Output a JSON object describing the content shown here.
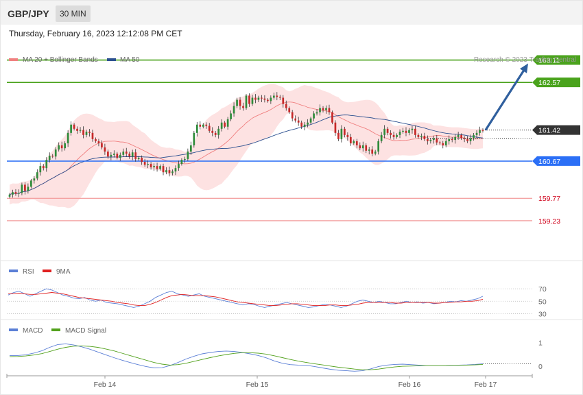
{
  "header": {
    "symbol": "GBP/JPY",
    "timeframe": "30 MIN"
  },
  "datetime": "Thursday, February 16, 2023 12:12:08 PM CET",
  "legend": {
    "ma20": "MA 20 + Bollinger Bands",
    "ma50": "MA 50",
    "copyright": "Research © 2023 Trading Central"
  },
  "colors": {
    "up": "#2e8b3a",
    "down": "#c62828",
    "resistance": "#4aa31c",
    "pivot": "#2b6ff6",
    "support": "#f29a9a",
    "support_text": "#d0021b",
    "current": "#333333",
    "arrow": "#2f5f9e",
    "bb_fill": "#fde2e2",
    "ma20": "#f08080",
    "ma50": "#2b4f8f",
    "rsi": "#5b7fd6",
    "rsi_ma": "#e02020",
    "macd": "#5b7fd6",
    "macd_signal": "#52a11c"
  },
  "chart_data": [
    {
      "type": "candlestick",
      "title": "GBP/JPY",
      "ylim": [
        158.3,
        163.5
      ],
      "ma20_label": "MA 20 + Bollinger Bands",
      "ma50_label": "MA 50",
      "ohlc_close": [
        159.86,
        159.92,
        159.88,
        159.9,
        160.1,
        159.95,
        160.05,
        160.2,
        160.25,
        160.4,
        160.55,
        160.5,
        160.7,
        160.8,
        160.78,
        160.95,
        161.05,
        160.98,
        161.1,
        161.35,
        161.55,
        161.45,
        161.4,
        161.42,
        161.3,
        161.38,
        161.35,
        161.2,
        161.15,
        161.1,
        161.0,
        160.9,
        160.78,
        160.82,
        160.85,
        160.75,
        160.82,
        160.9,
        160.85,
        160.78,
        160.88,
        160.72,
        160.75,
        160.65,
        160.58,
        160.6,
        160.52,
        160.55,
        160.48,
        160.55,
        160.4,
        160.45,
        160.38,
        160.42,
        160.5,
        160.6,
        160.7,
        160.72,
        160.9,
        161.05,
        161.35,
        161.55,
        161.5,
        161.55,
        161.52,
        161.4,
        161.35,
        161.3,
        161.45,
        161.6,
        161.5,
        161.68,
        161.82,
        162.0,
        162.15,
        162.0,
        161.95,
        162.25,
        162.05,
        162.2,
        162.15,
        162.2,
        162.18,
        162.15,
        162.12,
        162.2,
        162.25,
        162.22,
        162.2,
        162.05,
        161.95,
        161.85,
        161.7,
        161.65,
        161.6,
        161.5,
        161.55,
        161.6,
        161.7,
        161.82,
        161.85,
        161.95,
        161.9,
        161.95,
        161.85,
        161.6,
        161.35,
        161.2,
        161.45,
        161.3,
        161.25,
        161.1,
        161.15,
        161.05,
        160.98,
        161.05,
        160.92,
        160.95,
        160.85,
        160.9,
        161.15,
        161.3,
        161.45,
        161.35,
        161.3,
        161.25,
        161.3,
        161.38,
        161.4,
        161.35,
        161.42,
        161.45,
        161.3,
        161.25,
        161.28,
        161.2,
        161.15,
        161.18,
        161.22,
        161.12,
        161.1,
        161.05,
        161.15,
        161.2,
        161.18,
        161.25,
        161.3,
        161.22,
        161.2,
        161.15,
        161.22,
        161.3,
        161.35,
        161.42,
        161.4
      ],
      "levels": [
        {
          "label": "163.11",
          "value": 163.11,
          "kind": "resistance"
        },
        {
          "label": "162.57",
          "value": 162.57,
          "kind": "resistance"
        },
        {
          "label": "161.42",
          "value": 161.42,
          "kind": "current"
        },
        {
          "label": "160.67",
          "value": 160.67,
          "kind": "pivot"
        },
        {
          "label": "159.77",
          "value": 159.77,
          "kind": "support"
        },
        {
          "label": "159.23",
          "value": 159.23,
          "kind": "support"
        }
      ],
      "x_tick_labels": [
        "Feb 14",
        "Feb 15",
        "Feb 16",
        "Feb 17"
      ]
    },
    {
      "type": "line",
      "series_names": [
        "RSI",
        "9MA"
      ],
      "ylim": [
        25,
        80
      ],
      "y_tick_labels": [
        "70",
        "50",
        "30"
      ],
      "rsi": [
        60,
        64,
        66,
        62,
        58,
        62,
        66,
        70,
        68,
        64,
        60,
        58,
        55,
        54,
        56,
        52,
        50,
        52,
        48,
        47,
        46,
        44,
        42,
        40,
        42,
        46,
        50,
        56,
        60,
        64,
        66,
        62,
        60,
        58,
        60,
        62,
        58,
        56,
        54,
        52,
        50,
        48,
        46,
        44,
        46,
        45,
        42,
        40,
        42,
        44,
        46,
        48,
        46,
        44,
        42,
        40,
        41,
        43,
        45,
        44,
        42,
        40,
        42,
        46,
        50,
        52,
        50,
        48,
        50,
        48,
        46,
        46,
        48,
        50,
        48,
        49,
        47,
        48,
        46,
        47,
        48,
        50,
        49,
        51,
        50,
        52,
        54,
        58
      ],
      "rsi_ma": [
        62,
        62,
        63,
        62,
        61,
        61,
        62,
        63,
        64,
        63,
        62,
        60,
        58,
        56,
        55,
        54,
        53,
        52,
        51,
        50,
        48,
        47,
        46,
        44,
        43,
        43,
        45,
        48,
        52,
        56,
        59,
        60,
        61,
        60,
        59,
        59,
        59,
        58,
        57,
        55,
        53,
        51,
        49,
        48,
        47,
        46,
        45,
        44,
        43,
        43,
        44,
        45,
        46,
        46,
        45,
        44,
        43,
        43,
        43,
        44,
        44,
        43,
        43,
        44,
        45,
        47,
        48,
        48,
        48,
        48,
        48,
        47,
        47,
        48,
        48,
        48,
        48,
        48,
        47,
        47,
        48,
        48,
        49,
        49,
        50,
        50,
        51,
        53
      ]
    },
    {
      "type": "line",
      "series_names": [
        "MACD",
        "MACD Signal"
      ],
      "ylim": [
        -0.3,
        1.4
      ],
      "y_tick_labels": [
        "1",
        "0"
      ],
      "macd": [
        0.45,
        0.45,
        0.48,
        0.55,
        0.65,
        0.8,
        0.92,
        0.95,
        0.9,
        0.82,
        0.72,
        0.6,
        0.48,
        0.36,
        0.25,
        0.15,
        0.06,
        -0.02,
        -0.08,
        -0.07,
        0.02,
        0.15,
        0.3,
        0.42,
        0.52,
        0.58,
        0.62,
        0.64,
        0.62,
        0.58,
        0.52,
        0.45,
        0.35,
        0.22,
        0.12,
        0.06,
        0.04,
        0.03,
        -0.02,
        -0.08,
        -0.14,
        -0.18,
        -0.2,
        -0.22,
        -0.2,
        -0.12,
        -0.02,
        0.04,
        0.07,
        0.08,
        0.06,
        0.04,
        0.02,
        0.02,
        0.02,
        0.03,
        0.04,
        0.05,
        0.07,
        0.1
      ],
      "macd_signal": [
        0.4,
        0.41,
        0.43,
        0.47,
        0.53,
        0.62,
        0.72,
        0.8,
        0.85,
        0.86,
        0.84,
        0.8,
        0.73,
        0.65,
        0.55,
        0.45,
        0.35,
        0.25,
        0.15,
        0.08,
        0.04,
        0.06,
        0.12,
        0.2,
        0.28,
        0.36,
        0.43,
        0.49,
        0.54,
        0.57,
        0.57,
        0.55,
        0.51,
        0.44,
        0.36,
        0.28,
        0.21,
        0.15,
        0.1,
        0.05,
        0.0,
        -0.05,
        -0.09,
        -0.13,
        -0.16,
        -0.16,
        -0.13,
        -0.08,
        -0.04,
        -0.01,
        0.0,
        0.01,
        0.02,
        0.02,
        0.02,
        0.03,
        0.03,
        0.04,
        0.05,
        0.07
      ]
    }
  ]
}
